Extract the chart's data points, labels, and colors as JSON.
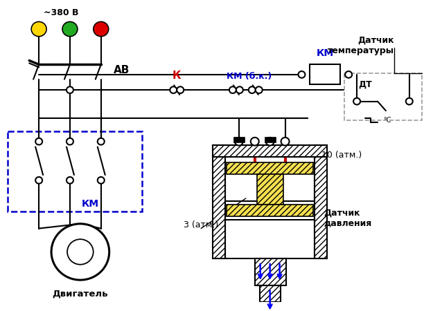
{
  "bg_color": "#ffffff",
  "phase_colors": [
    "#FFD700",
    "#22AA22",
    "#DD0000"
  ],
  "phase_label": "~380 В",
  "ab_label": "АВ",
  "km_label_blue": "КМ",
  "k_label": "К",
  "km_bk_label": "КМ (б.к.)",
  "dt_label": "ДТ",
  "datchik_temp": "Датчик\nтемпературы",
  "datchik_davl": "Датчик\nдавления",
  "dvig_label": "Двигатель",
  "atm3_label": "3 (атм.)",
  "atm10_label": "10 (атм.)"
}
